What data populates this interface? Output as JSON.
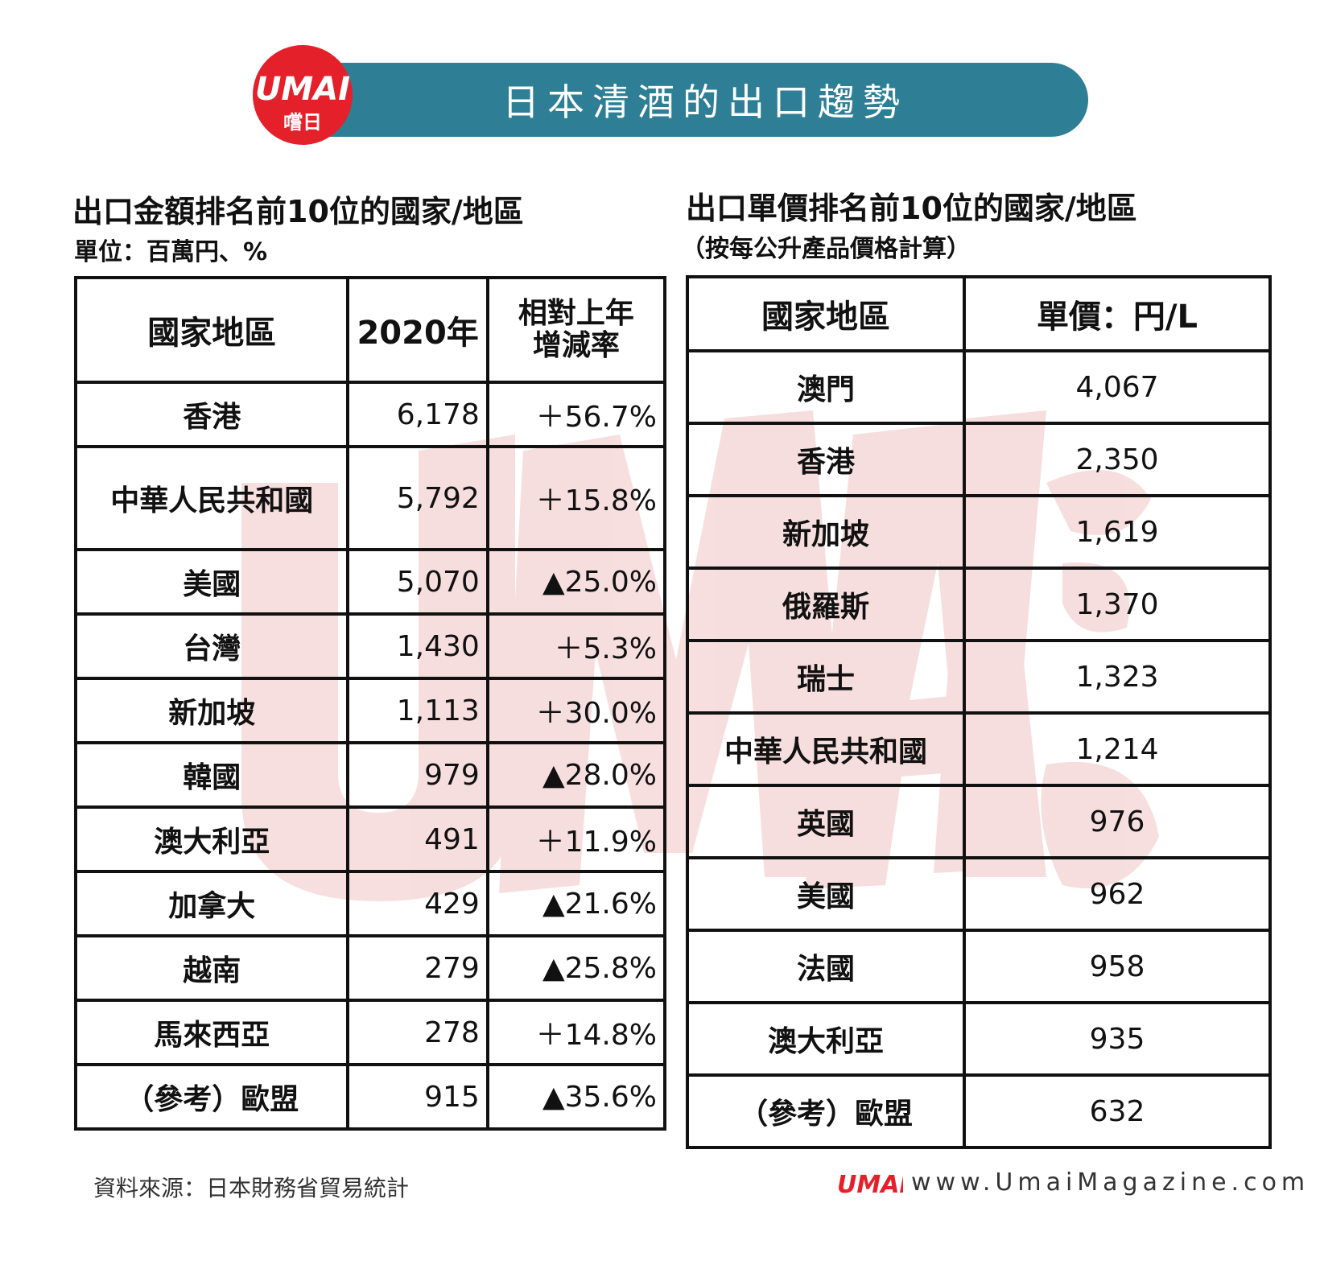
{
  "banner": {
    "title": "日本清酒的出口趨勢"
  },
  "logo": {
    "brand": "UMAI",
    "sub": "嚐日"
  },
  "left_table": {
    "title": "出口金額排名前10位的國家/地區",
    "subtitle": "單位：百萬円、%",
    "headers": {
      "region": "國家地區",
      "year": "2020年",
      "change_line1": "相對上年",
      "change_line2": "增減率"
    },
    "rows": [
      {
        "region": "香港",
        "value": "6,178",
        "change": "＋56.7%"
      },
      {
        "region": "中華人民共和國",
        "value": "5,792",
        "change": "＋15.8%"
      },
      {
        "region": "美國",
        "value": "5,070",
        "change": "▲25.0%"
      },
      {
        "region": "台灣",
        "value": "1,430",
        "change": "＋5.3%"
      },
      {
        "region": "新加坡",
        "value": "1,113",
        "change": "＋30.0%"
      },
      {
        "region": "韓國",
        "value": "979",
        "change": "▲28.0%"
      },
      {
        "region": "澳大利亞",
        "value": "491",
        "change": "＋11.9%"
      },
      {
        "region": "加拿大",
        "value": "429",
        "change": "▲21.6%"
      },
      {
        "region": "越南",
        "value": "279",
        "change": "▲25.8%"
      },
      {
        "region": "馬來西亞",
        "value": "278",
        "change": "＋14.8%"
      },
      {
        "region": "（參考）歐盟",
        "value": "915",
        "change": "▲35.6%"
      }
    ]
  },
  "right_table": {
    "title": "出口單價排名前10位的國家/地區",
    "subtitle": "（按每公升產品價格計算）",
    "headers": {
      "region": "國家地區",
      "price": "單價：円/L"
    },
    "rows": [
      {
        "region": "澳門",
        "price": "4,067"
      },
      {
        "region": "香港",
        "price": "2,350"
      },
      {
        "region": "新加坡",
        "price": "1,619"
      },
      {
        "region": "俄羅斯",
        "price": "1,370"
      },
      {
        "region": "瑞士",
        "price": "1,323"
      },
      {
        "region": "中華人民共和國",
        "price": "1,214"
      },
      {
        "region": "英國",
        "price": "976"
      },
      {
        "region": "美國",
        "price": "962"
      },
      {
        "region": "法國",
        "price": "958"
      },
      {
        "region": "澳大利亞",
        "price": "935"
      },
      {
        "region": "（參考）歐盟",
        "price": "632"
      }
    ]
  },
  "footer": {
    "source": "資料來源：日本財務省貿易統計",
    "url": "www.UmaiMagazine.com"
  },
  "colors": {
    "banner": "#2e7f95",
    "logo_red": "#e4202a",
    "watermark": "#f3c9c9"
  }
}
